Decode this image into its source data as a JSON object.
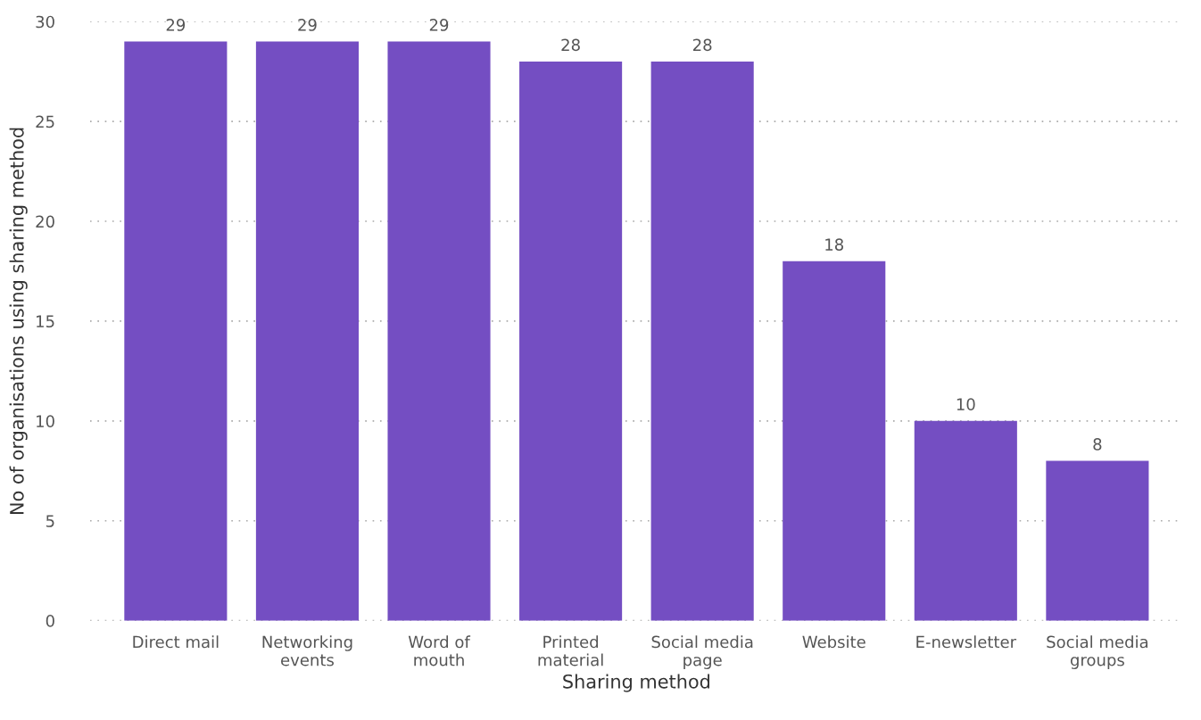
{
  "chart_data": {
    "type": "bar",
    "xlabel": "Sharing method",
    "ylabel": "No of organisations using sharing method",
    "categories": [
      "Direct mail",
      "Networking\nevents",
      "Word of\nmouth",
      "Printed\nmaterial",
      "Social media\npage",
      "Website",
      "E-newsletter",
      "Social media\ngroups"
    ],
    "values": [
      29,
      29,
      29,
      28,
      28,
      18,
      10,
      8
    ],
    "color": "#744ec2",
    "ylim": [
      0,
      30
    ],
    "yticks": [
      0,
      5,
      10,
      15,
      20,
      25,
      30
    ],
    "grid": "y",
    "data_labels": true
  }
}
